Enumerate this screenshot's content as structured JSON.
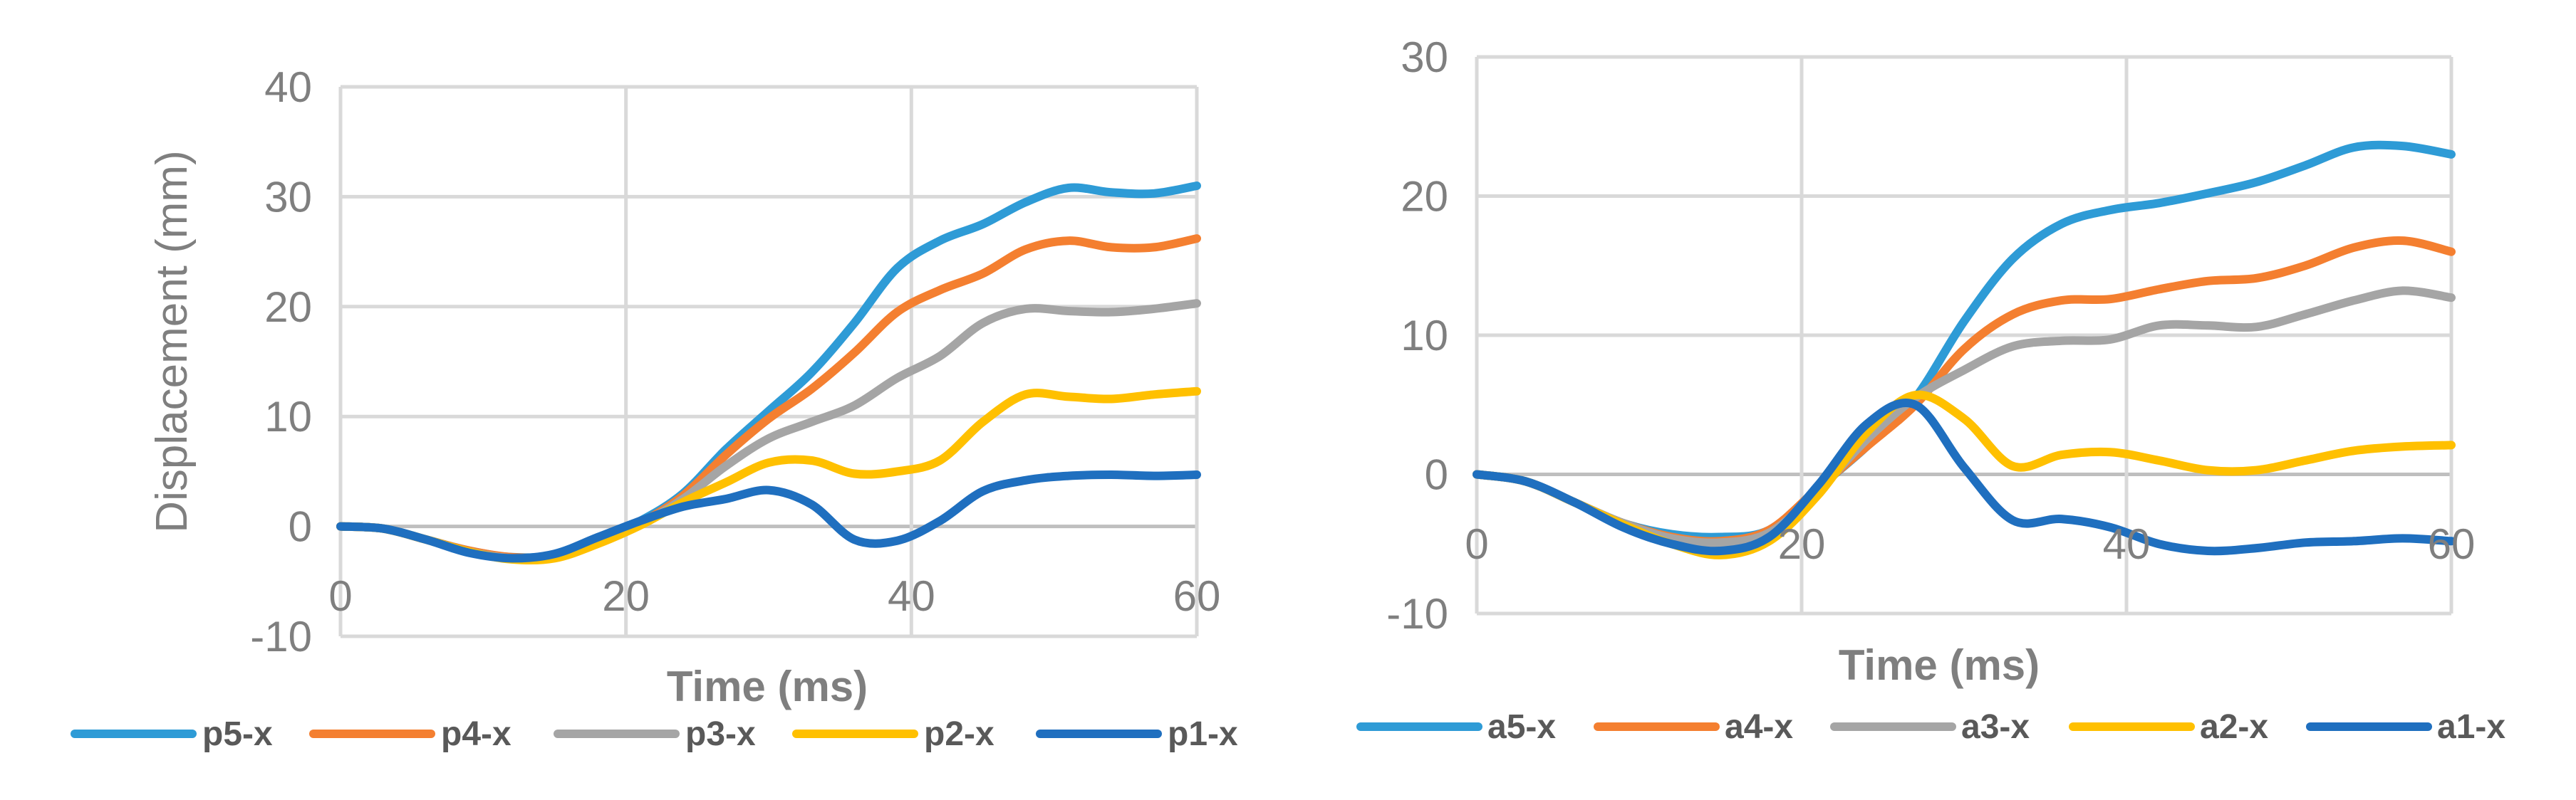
{
  "chart_data": [
    {
      "type": "line",
      "title": "",
      "xlabel": "Time (ms)",
      "ylabel": "Displacement (mm)",
      "xlim": [
        0,
        60
      ],
      "ylim": [
        -10,
        40
      ],
      "xticks": [
        0,
        20,
        40,
        60
      ],
      "yticks": [
        -10,
        0,
        10,
        20,
        30,
        40
      ],
      "x_tick_labels": [
        "0",
        "20",
        "40",
        "60"
      ],
      "y_tick_labels": [
        "-10",
        "0",
        "10",
        "20",
        "30",
        "40"
      ],
      "legend_position": "bottom",
      "x": [
        0,
        3,
        6,
        9,
        12,
        15,
        18,
        21,
        24,
        27,
        30,
        33,
        36,
        39,
        42,
        45,
        48,
        51,
        54,
        57,
        60
      ],
      "series": [
        {
          "name": "p5-x",
          "color": "#2e9bd6",
          "values": [
            0,
            -0.2,
            -1.2,
            -2.2,
            -2.8,
            -2.6,
            -1.2,
            0.5,
            3.0,
            7.0,
            10.5,
            14.0,
            18.5,
            23.5,
            26.0,
            27.5,
            29.5,
            30.8,
            30.4,
            30.3,
            31.0
          ]
        },
        {
          "name": "p4-x",
          "color": "#f47f30",
          "values": [
            0,
            -0.2,
            -1.2,
            -2.2,
            -2.8,
            -2.7,
            -1.4,
            0.3,
            2.8,
            6.5,
            9.8,
            12.5,
            15.8,
            19.5,
            21.5,
            23.0,
            25.2,
            26.0,
            25.4,
            25.4,
            26.2
          ]
        },
        {
          "name": "p3-x",
          "color": "#a5a5a5",
          "values": [
            0,
            -0.2,
            -1.2,
            -2.3,
            -2.9,
            -2.8,
            -1.5,
            0.2,
            2.5,
            5.5,
            8.0,
            9.5,
            11.0,
            13.5,
            15.5,
            18.5,
            19.8,
            19.6,
            19.5,
            19.8,
            20.3
          ]
        },
        {
          "name": "p2-x",
          "color": "#ffc000",
          "values": [
            0,
            -0.2,
            -1.2,
            -2.3,
            -3.0,
            -2.9,
            -1.6,
            0.1,
            2.2,
            4.0,
            5.8,
            6.0,
            4.8,
            5.0,
            6.0,
            9.5,
            12.0,
            11.8,
            11.6,
            12.0,
            12.3
          ]
        },
        {
          "name": "p1-x",
          "color": "#1f6fbf",
          "values": [
            0,
            -0.2,
            -1.2,
            -2.4,
            -2.9,
            -2.5,
            -1.0,
            0.5,
            1.8,
            2.5,
            3.3,
            2.0,
            -1.2,
            -1.3,
            0.5,
            3.2,
            4.2,
            4.6,
            4.7,
            4.6,
            4.7
          ]
        }
      ],
      "legend": [
        "p5-x",
        "p4-x",
        "p3-x",
        "p2-x",
        "p1-x"
      ]
    },
    {
      "type": "line",
      "title": "",
      "xlabel": "Time (ms)",
      "ylabel": "",
      "xlim": [
        0,
        60
      ],
      "ylim": [
        -10,
        30
      ],
      "xticks": [
        0,
        20,
        40,
        60
      ],
      "yticks": [
        -10,
        0,
        10,
        20,
        30
      ],
      "x_tick_labels": [
        "0",
        "20",
        "40",
        "60"
      ],
      "y_tick_labels": [
        "-10",
        "0",
        "10",
        "20",
        "30"
      ],
      "legend_position": "bottom",
      "x": [
        0,
        3,
        6,
        9,
        12,
        15,
        18,
        21,
        24,
        27,
        30,
        33,
        36,
        39,
        42,
        45,
        48,
        51,
        54,
        57,
        60
      ],
      "series": [
        {
          "name": "a5-x",
          "color": "#2e9bd6",
          "values": [
            0,
            -0.5,
            -2.0,
            -3.5,
            -4.3,
            -4.5,
            -4.0,
            -1.0,
            2.0,
            5.5,
            11.0,
            15.5,
            18.0,
            19.0,
            19.5,
            20.2,
            21.0,
            22.2,
            23.5,
            23.6,
            23.0
          ]
        },
        {
          "name": "a4-x",
          "color": "#f47f30",
          "values": [
            0,
            -0.5,
            -2.0,
            -3.5,
            -4.5,
            -4.8,
            -4.0,
            -1.0,
            2.0,
            5.0,
            9.0,
            11.5,
            12.5,
            12.6,
            13.3,
            13.9,
            14.1,
            15.0,
            16.3,
            16.8,
            16.0
          ]
        },
        {
          "name": "a3-x",
          "color": "#a5a5a5",
          "values": [
            0,
            -0.5,
            -2.0,
            -3.5,
            -4.6,
            -4.9,
            -4.2,
            -1.2,
            2.5,
            5.5,
            7.5,
            9.2,
            9.6,
            9.7,
            10.7,
            10.7,
            10.6,
            11.5,
            12.5,
            13.2,
            12.7
          ]
        },
        {
          "name": "a2-x",
          "color": "#ffc000",
          "values": [
            0,
            -0.5,
            -2.0,
            -3.6,
            -5.0,
            -5.8,
            -4.8,
            -1.5,
            3.0,
            5.7,
            4.0,
            0.6,
            1.4,
            1.6,
            1.0,
            0.3,
            0.3,
            1.0,
            1.7,
            2.0,
            2.1
          ]
        },
        {
          "name": "a1-x",
          "color": "#1f6fbf",
          "values": [
            0,
            -0.5,
            -2.0,
            -3.8,
            -5.0,
            -5.5,
            -4.5,
            -0.8,
            3.6,
            5.0,
            0.5,
            -3.3,
            -3.2,
            -3.8,
            -5.0,
            -5.5,
            -5.3,
            -4.9,
            -4.8,
            -4.6,
            -4.8
          ]
        }
      ],
      "legend": [
        "a5-x",
        "a4-x",
        "a3-x",
        "a2-x",
        "a1-x"
      ]
    }
  ]
}
